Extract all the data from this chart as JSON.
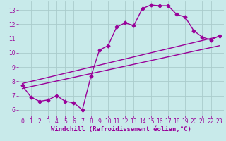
{
  "xlabel": "Windchill (Refroidissement éolien,°C)",
  "background_color": "#c8eaea",
  "grid_color": "#aacccc",
  "line_color": "#990099",
  "xlim": [
    -0.5,
    23.5
  ],
  "ylim": [
    5.6,
    13.6
  ],
  "xticks": [
    0,
    1,
    2,
    3,
    4,
    5,
    6,
    7,
    8,
    9,
    10,
    11,
    12,
    13,
    14,
    15,
    16,
    17,
    18,
    19,
    20,
    21,
    22,
    23
  ],
  "yticks": [
    6,
    7,
    8,
    9,
    10,
    11,
    12,
    13
  ],
  "line1_x": [
    0,
    1,
    2,
    3,
    4,
    5,
    6,
    7,
    8,
    9,
    10,
    11,
    12,
    13,
    14,
    15,
    16,
    17,
    18,
    19,
    20,
    21,
    22,
    23
  ],
  "line1_y": [
    7.7,
    6.9,
    6.6,
    6.7,
    7.0,
    6.6,
    6.5,
    6.0,
    8.35,
    10.2,
    10.5,
    11.8,
    12.1,
    11.9,
    13.1,
    13.35,
    13.3,
    13.3,
    12.7,
    12.5,
    11.55,
    11.1,
    10.9,
    11.2
  ],
  "line2_x": [
    0,
    23
  ],
  "line2_y": [
    7.5,
    10.5
  ],
  "line3_x": [
    0,
    23
  ],
  "line3_y": [
    7.85,
    11.15
  ],
  "marker": "D",
  "markersize": 2.5,
  "linewidth": 1.0,
  "tick_fontsize": 5.5,
  "xlabel_fontsize": 6.5
}
